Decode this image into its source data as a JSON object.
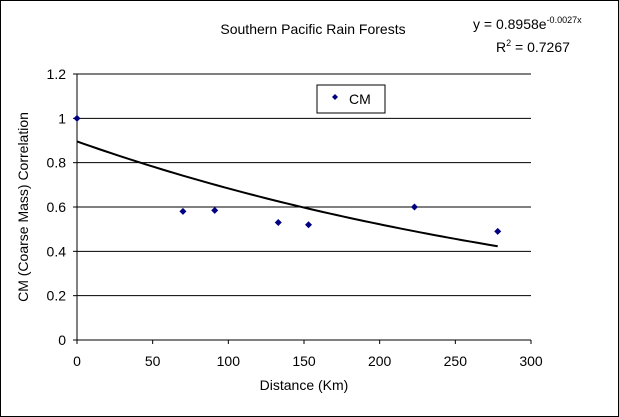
{
  "chart_data": {
    "type": "scatter",
    "title": "Southern Pacific Rain Forests",
    "xlabel": "Distance (Km)",
    "ylabel": "CM (Coarse Mass) Correlation",
    "xlim": [
      0,
      300
    ],
    "ylim": [
      0,
      1.2
    ],
    "xticks": [
      "0",
      "50",
      "100",
      "150",
      "200",
      "250",
      "300"
    ],
    "yticks": [
      "0",
      "0.2",
      "0.4",
      "0.6",
      "0.8",
      "1",
      "1.2"
    ],
    "grid": "horizontal",
    "legend": {
      "placement": "top-center",
      "entries": [
        "CM"
      ]
    },
    "series": [
      {
        "name": "CM",
        "color": "#000080",
        "marker": "diamond",
        "points": [
          {
            "x": 0,
            "y": 1.0
          },
          {
            "x": 70,
            "y": 0.58
          },
          {
            "x": 91,
            "y": 0.585
          },
          {
            "x": 133,
            "y": 0.53
          },
          {
            "x": 153,
            "y": 0.52
          },
          {
            "x": 223,
            "y": 0.6
          },
          {
            "x": 278,
            "y": 0.49
          }
        ]
      }
    ],
    "trendline": {
      "type": "exponential",
      "a": 0.8958,
      "b": -0.0027,
      "x_range": [
        0,
        278
      ],
      "color": "#000000"
    },
    "annotations": {
      "equation_prefix": "y = 0.8958e",
      "equation_exponent": "-0.0027x",
      "r2_label": "R",
      "r2_sup": "2",
      "r2_value": " = 0.7267"
    }
  }
}
